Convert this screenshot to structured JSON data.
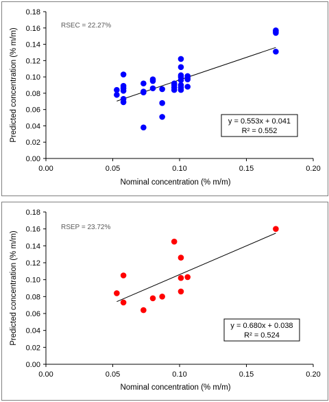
{
  "chart_data": [
    {
      "type": "scatter",
      "marker_color": "#0000ff",
      "xlabel": "Nominal concentration (% m/m)",
      "ylabel": "Predicted concentration (% m/m)",
      "xlim": [
        0,
        0.2
      ],
      "ylim": [
        0,
        0.18
      ],
      "xticks": [
        "0.00",
        "0.05",
        "0.10",
        "0.15",
        "0.20"
      ],
      "yticks": [
        "0.00",
        "0.02",
        "0.04",
        "0.06",
        "0.08",
        "0.10",
        "0.12",
        "0.14",
        "0.16",
        "0.18"
      ],
      "annotation": "RSEC = 22.27%",
      "equation": "y = 0.553x + 0.041",
      "r2": "R² = 0.552",
      "trendline": {
        "slope": 0.553,
        "intercept": 0.041,
        "x_range": [
          0.053,
          0.172
        ]
      },
      "points": [
        {
          "x": 0.053,
          "y": 0.084
        },
        {
          "x": 0.053,
          "y": 0.078
        },
        {
          "x": 0.058,
          "y": 0.103
        },
        {
          "x": 0.058,
          "y": 0.089
        },
        {
          "x": 0.058,
          "y": 0.086
        },
        {
          "x": 0.058,
          "y": 0.083
        },
        {
          "x": 0.058,
          "y": 0.073
        },
        {
          "x": 0.058,
          "y": 0.069
        },
        {
          "x": 0.073,
          "y": 0.092
        },
        {
          "x": 0.073,
          "y": 0.082
        },
        {
          "x": 0.073,
          "y": 0.081
        },
        {
          "x": 0.073,
          "y": 0.038
        },
        {
          "x": 0.08,
          "y": 0.097
        },
        {
          "x": 0.08,
          "y": 0.095
        },
        {
          "x": 0.08,
          "y": 0.086
        },
        {
          "x": 0.087,
          "y": 0.085
        },
        {
          "x": 0.087,
          "y": 0.068
        },
        {
          "x": 0.087,
          "y": 0.051
        },
        {
          "x": 0.096,
          "y": 0.092
        },
        {
          "x": 0.096,
          "y": 0.09
        },
        {
          "x": 0.096,
          "y": 0.087
        },
        {
          "x": 0.096,
          "y": 0.084
        },
        {
          "x": 0.101,
          "y": 0.122
        },
        {
          "x": 0.101,
          "y": 0.112
        },
        {
          "x": 0.101,
          "y": 0.102
        },
        {
          "x": 0.101,
          "y": 0.1
        },
        {
          "x": 0.101,
          "y": 0.096
        },
        {
          "x": 0.101,
          "y": 0.09
        },
        {
          "x": 0.101,
          "y": 0.087
        },
        {
          "x": 0.101,
          "y": 0.084
        },
        {
          "x": 0.106,
          "y": 0.101
        },
        {
          "x": 0.106,
          "y": 0.099
        },
        {
          "x": 0.106,
          "y": 0.097
        },
        {
          "x": 0.106,
          "y": 0.088
        },
        {
          "x": 0.172,
          "y": 0.157
        },
        {
          "x": 0.172,
          "y": 0.156
        },
        {
          "x": 0.172,
          "y": 0.154
        },
        {
          "x": 0.172,
          "y": 0.131
        }
      ]
    },
    {
      "type": "scatter",
      "marker_color": "#ff0000",
      "xlabel": "Nominal concentration (% m/m)",
      "ylabel": "Predicted concentration (% m/m)",
      "xlim": [
        0,
        0.2
      ],
      "ylim": [
        0,
        0.18
      ],
      "xticks": [
        "0.00",
        "0.05",
        "0.10",
        "0.15",
        "0.20"
      ],
      "yticks": [
        "0.00",
        "0.02",
        "0.04",
        "0.06",
        "0.08",
        "0.10",
        "0.12",
        "0.14",
        "0.16",
        "0.18"
      ],
      "annotation": "RSEP = 23.72%",
      "equation": "y = 0.680x + 0.038",
      "r2": "R² = 0.524",
      "trendline": {
        "slope": 0.68,
        "intercept": 0.038,
        "x_range": [
          0.053,
          0.172
        ]
      },
      "points": [
        {
          "x": 0.053,
          "y": 0.084
        },
        {
          "x": 0.058,
          "y": 0.105
        },
        {
          "x": 0.058,
          "y": 0.073
        },
        {
          "x": 0.073,
          "y": 0.064
        },
        {
          "x": 0.08,
          "y": 0.078
        },
        {
          "x": 0.087,
          "y": 0.08
        },
        {
          "x": 0.096,
          "y": 0.145
        },
        {
          "x": 0.101,
          "y": 0.126
        },
        {
          "x": 0.101,
          "y": 0.102
        },
        {
          "x": 0.101,
          "y": 0.086
        },
        {
          "x": 0.106,
          "y": 0.103
        },
        {
          "x": 0.172,
          "y": 0.16
        }
      ]
    }
  ]
}
